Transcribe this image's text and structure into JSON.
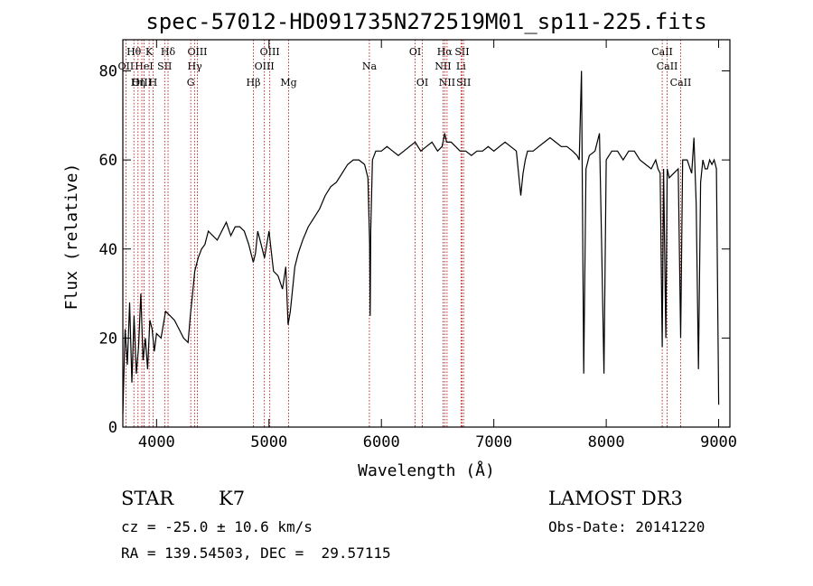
{
  "chart_data": {
    "type": "line",
    "title": "spec-57012-HD091735N272519M01_sp11-225.fits",
    "xlabel": "Wavelength (Å)",
    "ylabel": "Flux (relative)",
    "xlim": [
      3700,
      9100
    ],
    "ylim": [
      0,
      87
    ],
    "xticks": [
      4000,
      5000,
      6000,
      7000,
      8000,
      9000
    ],
    "yticks": [
      0,
      20,
      40,
      60,
      80
    ],
    "series": [
      {
        "name": "flux",
        "x": [
          3700,
          3720,
          3740,
          3760,
          3780,
          3800,
          3820,
          3840,
          3860,
          3880,
          3900,
          3920,
          3940,
          3960,
          3980,
          4000,
          4040,
          4080,
          4120,
          4160,
          4200,
          4240,
          4280,
          4300,
          4320,
          4340,
          4370,
          4400,
          4430,
          4460,
          4500,
          4540,
          4580,
          4620,
          4660,
          4700,
          4740,
          4780,
          4820,
          4860,
          4880,
          4900,
          4930,
          4960,
          5000,
          5040,
          5080,
          5120,
          5150,
          5170,
          5190,
          5210,
          5230,
          5260,
          5300,
          5350,
          5400,
          5450,
          5500,
          5550,
          5600,
          5650,
          5700,
          5750,
          5800,
          5850,
          5880,
          5895,
          5900,
          5905,
          5920,
          5950,
          6000,
          6050,
          6100,
          6150,
          6200,
          6250,
          6300,
          6350,
          6400,
          6450,
          6500,
          6540,
          6563,
          6580,
          6620,
          6660,
          6700,
          6750,
          6800,
          6850,
          6900,
          6950,
          7000,
          7050,
          7100,
          7150,
          7200,
          7240,
          7260,
          7280,
          7300,
          7350,
          7400,
          7450,
          7500,
          7550,
          7600,
          7650,
          7700,
          7740,
          7760,
          7780,
          7800,
          7820,
          7850,
          7900,
          7940,
          7960,
          7980,
          8000,
          8050,
          8100,
          8150,
          8200,
          8250,
          8300,
          8350,
          8400,
          8440,
          8460,
          8480,
          8498,
          8510,
          8530,
          8542,
          8560,
          8600,
          8640,
          8662,
          8680,
          8720,
          8760,
          8780,
          8800,
          8820,
          8840,
          8860,
          8880,
          8900,
          8920,
          8940,
          8960,
          8980,
          9000
        ],
        "y": [
          3,
          22,
          14,
          28,
          10,
          25,
          12,
          18,
          30,
          15,
          20,
          13,
          24,
          22,
          17,
          21,
          20,
          26,
          25,
          24,
          22,
          20,
          19,
          25,
          30,
          35,
          38,
          40,
          41,
          44,
          43,
          42,
          44,
          46,
          43,
          45,
          45,
          44,
          41,
          37,
          39,
          44,
          41,
          38,
          44,
          35,
          34,
          31,
          36,
          23,
          26,
          31,
          36,
          39,
          42,
          45,
          47,
          49,
          52,
          54,
          55,
          57,
          59,
          60,
          60,
          59,
          56,
          41,
          25,
          44,
          60,
          62,
          62,
          63,
          62,
          61,
          62,
          63,
          64,
          62,
          63,
          64,
          62,
          63,
          66,
          64,
          64,
          63,
          62,
          62,
          61,
          62,
          62,
          63,
          62,
          63,
          64,
          63,
          62,
          52,
          57,
          60,
          62,
          62,
          63,
          64,
          65,
          64,
          63,
          63,
          62,
          61,
          60,
          80,
          12,
          58,
          61,
          62,
          66,
          40,
          12,
          60,
          62,
          62,
          60,
          62,
          62,
          60,
          59,
          58,
          60,
          58,
          57,
          18,
          58,
          20,
          58,
          56,
          57,
          58,
          20,
          60,
          60,
          57,
          65,
          50,
          13,
          55,
          60,
          58,
          58,
          60,
          59,
          60,
          58,
          5
        ]
      }
    ],
    "lines": [
      {
        "name": "Hθ",
        "wave": 3798,
        "row": 0
      },
      {
        "name": "K",
        "wave": 3934,
        "row": 0
      },
      {
        "name": "Hδ",
        "wave": 4102,
        "row": 0
      },
      {
        "name": "OIII",
        "wave": 4363,
        "row": 0
      },
      {
        "name": "OIII",
        "wave": 5007,
        "row": 0
      },
      {
        "name": "OI",
        "wave": 6300,
        "row": 0
      },
      {
        "name": "Hα",
        "wave": 6563,
        "row": 0
      },
      {
        "name": "SII",
        "wave": 6717,
        "row": 0
      },
      {
        "name": "CaII",
        "wave": 8498,
        "row": 0
      },
      {
        "name": "OII",
        "wave": 3727,
        "row": 1
      },
      {
        "name": "HeI",
        "wave": 3889,
        "row": 1
      },
      {
        "name": "SII",
        "wave": 4072,
        "row": 1
      },
      {
        "name": "Hγ",
        "wave": 4340,
        "row": 1
      },
      {
        "name": "OIII",
        "wave": 4959,
        "row": 1
      },
      {
        "name": "Na",
        "wave": 5893,
        "row": 1
      },
      {
        "name": "NII",
        "wave": 6548,
        "row": 1
      },
      {
        "name": "Li",
        "wave": 6708,
        "row": 1
      },
      {
        "name": "CaII",
        "wave": 8542,
        "row": 1
      },
      {
        "name": "OIII",
        "wave": 3869,
        "row": 2
      },
      {
        "name": "Hη",
        "wave": 3835,
        "row": 2
      },
      {
        "name": "H",
        "wave": 3969,
        "row": 2
      },
      {
        "name": "G",
        "wave": 4304,
        "row": 2
      },
      {
        "name": "Hβ",
        "wave": 4861,
        "row": 2
      },
      {
        "name": "Mg",
        "wave": 5175,
        "row": 2
      },
      {
        "name": "OI",
        "wave": 6364,
        "row": 2
      },
      {
        "name": "NII",
        "wave": 6584,
        "row": 2
      },
      {
        "name": "SII",
        "wave": 6731,
        "row": 2
      },
      {
        "name": "CaII",
        "wave": 8662,
        "row": 2
      }
    ]
  },
  "info": {
    "object_type": "STAR",
    "subclass": "K7",
    "survey": "LAMOST DR3",
    "cz": "cz = -25.0 ± 10.6 km/s",
    "obs_date": "Obs-Date: 20141220",
    "coords": "RA = 139.54503, DEC =  29.57115"
  }
}
